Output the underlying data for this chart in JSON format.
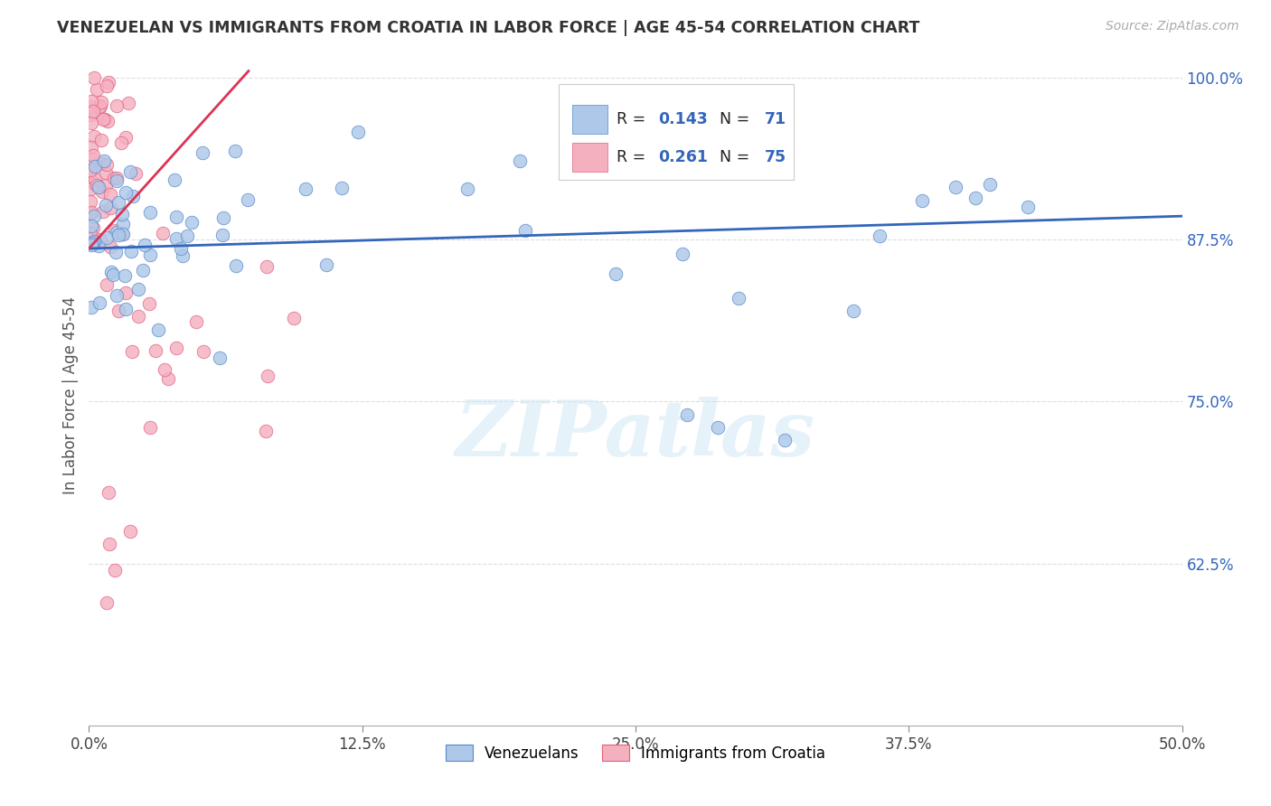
{
  "title": "VENEZUELAN VS IMMIGRANTS FROM CROATIA IN LABOR FORCE | AGE 45-54 CORRELATION CHART",
  "source": "Source: ZipAtlas.com",
  "ylabel": "In Labor Force | Age 45-54",
  "xlim": [
    0.0,
    0.5
  ],
  "ylim": [
    0.5,
    1.01
  ],
  "xtick_labels": [
    "0.0%",
    "12.5%",
    "25.0%",
    "37.5%",
    "50.0%"
  ],
  "xtick_vals": [
    0.0,
    0.125,
    0.25,
    0.375,
    0.5
  ],
  "ytick_labels": [
    "62.5%",
    "75.0%",
    "87.5%",
    "100.0%"
  ],
  "ytick_vals": [
    0.625,
    0.75,
    0.875,
    1.0
  ],
  "blue_fill": "#adc8e8",
  "blue_edge": "#5588cc",
  "pink_fill": "#f5b0c0",
  "pink_edge": "#e06080",
  "blue_line_color": "#3366bb",
  "pink_line_color": "#dd3355",
  "R1": "0.143",
  "N1": "71",
  "R2": "0.261",
  "N2": "75",
  "stat_color": "#3366bb",
  "watermark": "ZIPatlas",
  "label_blue": "Venezuelans",
  "label_pink": "Immigrants from Croatia",
  "grid_color": "#dddddd",
  "ytick_color": "#3366bb",
  "background": "#ffffff",
  "blue_trend_y0": 0.868,
  "blue_trend_y1": 0.893,
  "pink_trend_y0": 0.868,
  "pink_trend_x1": 0.073,
  "pink_trend_y1": 1.005
}
